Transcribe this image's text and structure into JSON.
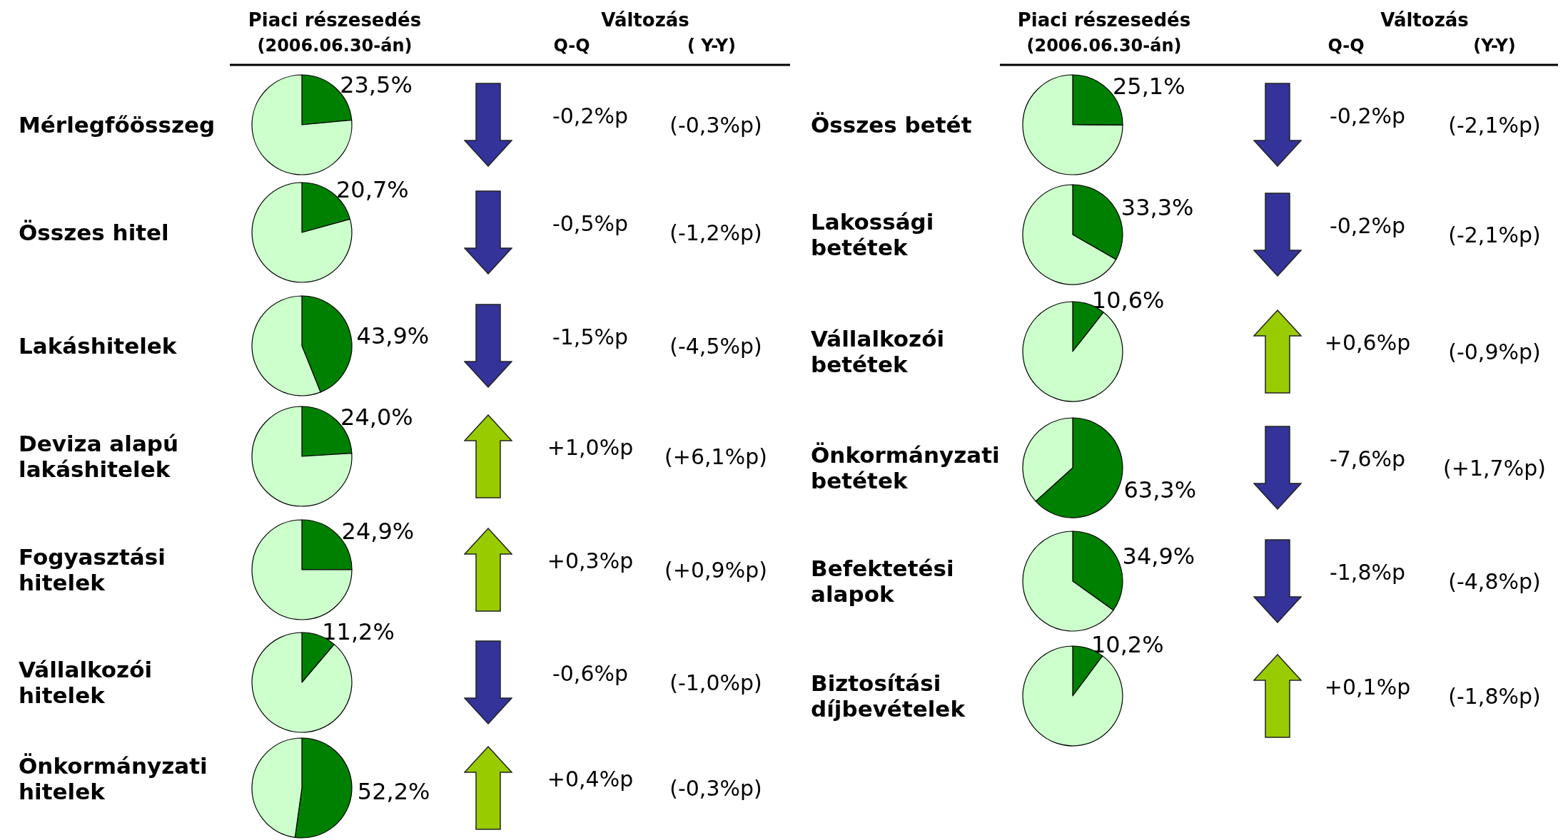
{
  "chart_data": [
    {
      "type": "other",
      "annotations": [
        "Piaci részesedés",
        "(2006.06.30-án)",
        "Változás",
        "Q-Q",
        "( Y-Y)"
      ]
    },
    {
      "type": "pie",
      "title": "Mérlegfőösszeg",
      "categories": [
        null,
        null
      ],
      "values": [
        23.5,
        76.5
      ],
      "colors": [
        "#008000",
        "#ccffcc"
      ],
      "value_labels": [
        "23,5%",
        null
      ],
      "annotations": [
        "-0,2%p",
        "(-0,3%p)"
      ]
    },
    {
      "type": "pie",
      "title": "Összes hitel",
      "categories": [
        null,
        null
      ],
      "values": [
        20.7,
        79.3
      ],
      "colors": [
        "#008000",
        "#ccffcc"
      ],
      "value_labels": [
        "20,7%",
        null
      ],
      "annotations": [
        "-0,5%p",
        "(-1,2%p)"
      ]
    },
    {
      "type": "pie",
      "title": "Lakáshitelek",
      "categories": [
        null,
        null
      ],
      "values": [
        43.9,
        56.1
      ],
      "colors": [
        "#008000",
        "#ccffcc"
      ],
      "value_labels": [
        "43,9%",
        null
      ],
      "annotations": [
        "-1,5%p",
        "(-4,5%p)"
      ]
    },
    {
      "type": "pie",
      "title": "Deviza alapú lakáshitelek",
      "categories": [
        null,
        null
      ],
      "values": [
        24.0,
        76.0
      ],
      "colors": [
        "#008000",
        "#ccffcc"
      ],
      "value_labels": [
        "24,0%",
        null
      ],
      "annotations": [
        "+1,0%p",
        "(+6,1%p)"
      ]
    },
    {
      "type": "pie",
      "title": "Fogyasztási hitelek",
      "categories": [
        null,
        null
      ],
      "values": [
        24.9,
        75.1
      ],
      "colors": [
        "#008000",
        "#ccffcc"
      ],
      "value_labels": [
        "24,9%",
        null
      ],
      "annotations": [
        "+0,3%p",
        "(+0,9%p)"
      ]
    },
    {
      "type": "pie",
      "title": "Vállalkozói hitelek",
      "categories": [
        null,
        null
      ],
      "values": [
        11.2,
        88.8
      ],
      "colors": [
        "#008000",
        "#ccffcc"
      ],
      "value_labels": [
        "11,2%",
        null
      ],
      "annotations": [
        "-0,6%p",
        "(-1,0%p)"
      ]
    },
    {
      "type": "pie",
      "title": "Önkormányzati hitelek",
      "categories": [
        null,
        null
      ],
      "values": [
        52.2,
        47.8
      ],
      "colors": [
        "#008000",
        "#ccffcc"
      ],
      "value_labels": [
        "52,2%",
        null
      ],
      "annotations": [
        "+0,4%p",
        "(-0,3%p)"
      ]
    },
    {
      "type": "other",
      "annotations": [
        "Piaci részesedés",
        "(2006.06.30-án)",
        "Változás",
        "Q-Q",
        "(Y-Y)"
      ]
    },
    {
      "type": "pie",
      "title": "Összes betét",
      "categories": [
        null,
        null
      ],
      "values": [
        25.1,
        74.9
      ],
      "colors": [
        "#008000",
        "#ccffcc"
      ],
      "value_labels": [
        "25,1%",
        null
      ],
      "annotations": [
        "-0,2%p",
        "(-2,1%p)"
      ]
    },
    {
      "type": "pie",
      "title": "Lakossági betétek",
      "categories": [
        null,
        null
      ],
      "values": [
        33.3,
        66.7
      ],
      "colors": [
        "#008000",
        "#ccffcc"
      ],
      "value_labels": [
        "33,3%",
        null
      ],
      "annotations": [
        "-0,2%p",
        "(-2,1%p)"
      ]
    },
    {
      "type": "pie",
      "title": "Vállalkozói betétek",
      "categories": [
        null,
        null
      ],
      "values": [
        10.6,
        89.4
      ],
      "colors": [
        "#008000",
        "#ccffcc"
      ],
      "value_labels": [
        "10,6%",
        null
      ],
      "annotations": [
        "+0,6%p",
        "(-0,9%p)"
      ]
    },
    {
      "type": "pie",
      "title": "Önkormányzati betétek",
      "categories": [
        null,
        null
      ],
      "values": [
        63.3,
        36.7
      ],
      "colors": [
        "#008000",
        "#ccffcc"
      ],
      "value_labels": [
        "63,3%",
        null
      ],
      "annotations": [
        "-7,6%p",
        "(+1,7%p)"
      ]
    },
    {
      "type": "pie",
      "title": "Befektetési alapok",
      "categories": [
        null,
        null
      ],
      "values": [
        34.9,
        65.1
      ],
      "colors": [
        "#008000",
        "#ccffcc"
      ],
      "value_labels": [
        "34,9%",
        null
      ],
      "annotations": [
        "-1,8%p",
        "(-4,8%p)"
      ]
    },
    {
      "type": "pie",
      "title": "Biztosítási díjbevételek",
      "categories": [
        null,
        null
      ],
      "values": [
        10.2,
        89.8
      ],
      "colors": [
        "#008000",
        "#ccffcc"
      ],
      "value_labels": [
        "10,2%",
        null
      ],
      "annotations": [
        "+0,1%p",
        "(-1,8%p)"
      ]
    }
  ]
}
